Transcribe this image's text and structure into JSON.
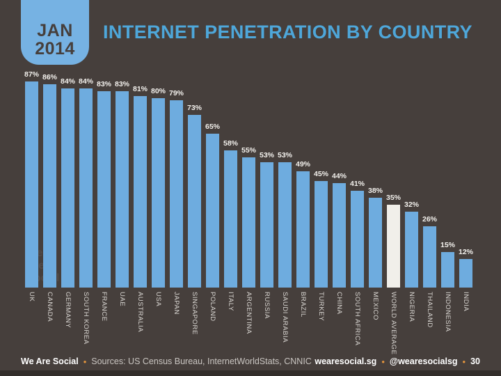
{
  "header": {
    "badge_line1": "JAN",
    "badge_line2": "2014",
    "title": "INTERNET PENETRATION BY COUNTRY"
  },
  "colors": {
    "background": "#463F3C",
    "bar_blue": "#6EACDF",
    "badge_blue": "#76B2E3",
    "title_blue": "#4EA7DA",
    "highlight_white": "#F1EFEA",
    "accent_orange": "#E0933C",
    "bottom_edge": "#332E2B",
    "badge_text": "#463F3C"
  },
  "chart_data": {
    "type": "bar",
    "title": "INTERNET PENETRATION BY COUNTRY",
    "unit": "%",
    "ylim": [
      0,
      100
    ],
    "grid": false,
    "legend": "none",
    "categories": [
      "UK",
      "CANADA",
      "GERMANY",
      "SOUTH KOREA",
      "FRANCE",
      "UAE",
      "AUSTRALIA",
      "USA",
      "JAPAN",
      "SINGAPORE",
      "POLAND",
      "ITALY",
      "ARGENTINA",
      "RUSSIA",
      "SAUDI ARABIA",
      "BRAZIL",
      "TURKEY",
      "CHINA",
      "SOUTH AFRICA",
      "MEXICO",
      "WORLD AVERAGE",
      "NIGERIA",
      "THAILAND",
      "INDONESIA",
      "INDIA"
    ],
    "values": [
      87,
      86,
      84,
      84,
      83,
      83,
      81,
      80,
      79,
      73,
      65,
      58,
      55,
      53,
      53,
      49,
      45,
      44,
      41,
      38,
      35,
      32,
      26,
      15,
      12
    ],
    "value_labels": [
      "87%",
      "86%",
      "84%",
      "84%",
      "83%",
      "83%",
      "81%",
      "80%",
      "79%",
      "73%",
      "65%",
      "58%",
      "55%",
      "53%",
      "53%",
      "49%",
      "45%",
      "44%",
      "41%",
      "38%",
      "35%",
      "32%",
      "26%",
      "15%",
      "12%"
    ],
    "highlight_category": "WORLD AVERAGE"
  },
  "watermark": {
    "text": "we\nare\nsocial"
  },
  "footer": {
    "brand": "We Are Social",
    "separator": "•",
    "sources": "Sources: US Census Bureau, InternetWorldStats, CNNIC",
    "site": "wearesocial.sg",
    "handle": "@wearesocialsg",
    "page": "30"
  }
}
